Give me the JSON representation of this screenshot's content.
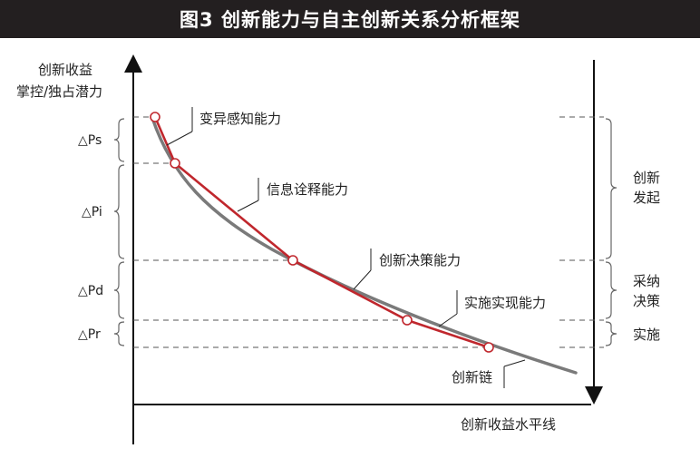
{
  "title": "图3 创新能力与自主创新关系分析框架",
  "y_axis": {
    "label_line1": "创新收益",
    "label_line2": "掌控/独占潜力"
  },
  "x_axis": {
    "label": "创新收益水平线"
  },
  "left_brackets": [
    {
      "label": "△Ps"
    },
    {
      "label": "△Pi"
    },
    {
      "label": "△Pd"
    },
    {
      "label": "△Pr"
    }
  ],
  "right_brackets": [
    {
      "label_line1": "创新",
      "label_line2": "发起"
    },
    {
      "label_line1": "采纳",
      "label_line2": "决策"
    },
    {
      "label_line1": "实施",
      "label_line2": ""
    }
  ],
  "capabilities": [
    {
      "label": "变异感知能力"
    },
    {
      "label": "信息诠释能力"
    },
    {
      "label": "创新决策能力"
    },
    {
      "label": "实施实现能力"
    }
  ],
  "curve_label": "创新链",
  "colors": {
    "title_bg": "#231f20",
    "curve": "#7a7a7a",
    "polyline": "#c0272d",
    "axis": "#111111"
  }
}
